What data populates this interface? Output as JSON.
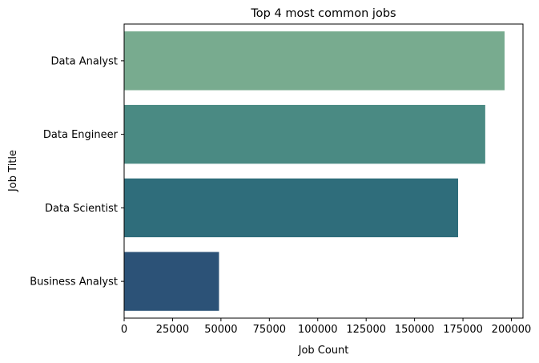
{
  "chart_data": {
    "type": "bar",
    "orientation": "horizontal",
    "title": "Top 4 most common jobs",
    "xlabel": "Job Count",
    "ylabel": "Job Title",
    "categories": [
      "Data Analyst",
      "Data Engineer",
      "Data Scientist",
      "Business Analyst"
    ],
    "values": [
      196500,
      186500,
      172500,
      49000
    ],
    "colors": [
      "#78ab8f",
      "#4a8a83",
      "#2f6d7b",
      "#2c5277"
    ],
    "xlim": [
      0,
      206000
    ],
    "xticks": [
      0,
      25000,
      50000,
      75000,
      100000,
      125000,
      150000,
      175000,
      200000
    ],
    "grid": false,
    "legend": "none"
  }
}
